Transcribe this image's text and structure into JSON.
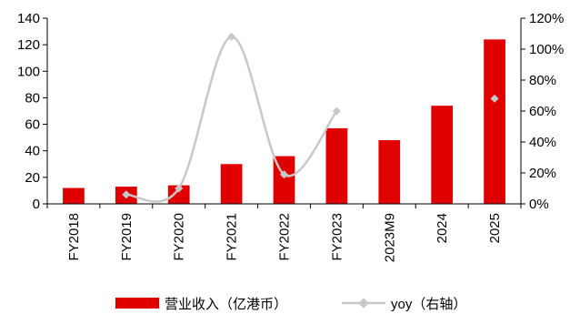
{
  "chart_data": {
    "type": "bar",
    "categories": [
      "FY2018",
      "FY2019",
      "FY2020",
      "FY2021",
      "FY2022",
      "FY2023",
      "2023M9",
      "2024",
      "2025"
    ],
    "series": [
      {
        "name": "营业收入（亿港币）",
        "axis": "left",
        "type": "bar",
        "color": "#e00000",
        "values": [
          12,
          13,
          14,
          30,
          36,
          57,
          48,
          74,
          124
        ]
      },
      {
        "name": "yoy（右轴）",
        "axis": "right",
        "type": "line",
        "color": "#c8c8c8",
        "values": [
          null,
          0.06,
          0.1,
          1.08,
          0.19,
          0.6,
          null,
          null,
          0.68
        ]
      }
    ],
    "left_axis": {
      "ylim": [
        0,
        140
      ],
      "ticks": [
        "0",
        "20",
        "40",
        "60",
        "80",
        "100",
        "120",
        "140"
      ]
    },
    "right_axis": {
      "ylim": [
        0,
        1.2
      ],
      "ticks": [
        "0%",
        "20%",
        "40%",
        "60%",
        "80%",
        "100%",
        "120%"
      ]
    },
    "grid": false,
    "legend_position": "bottom"
  }
}
